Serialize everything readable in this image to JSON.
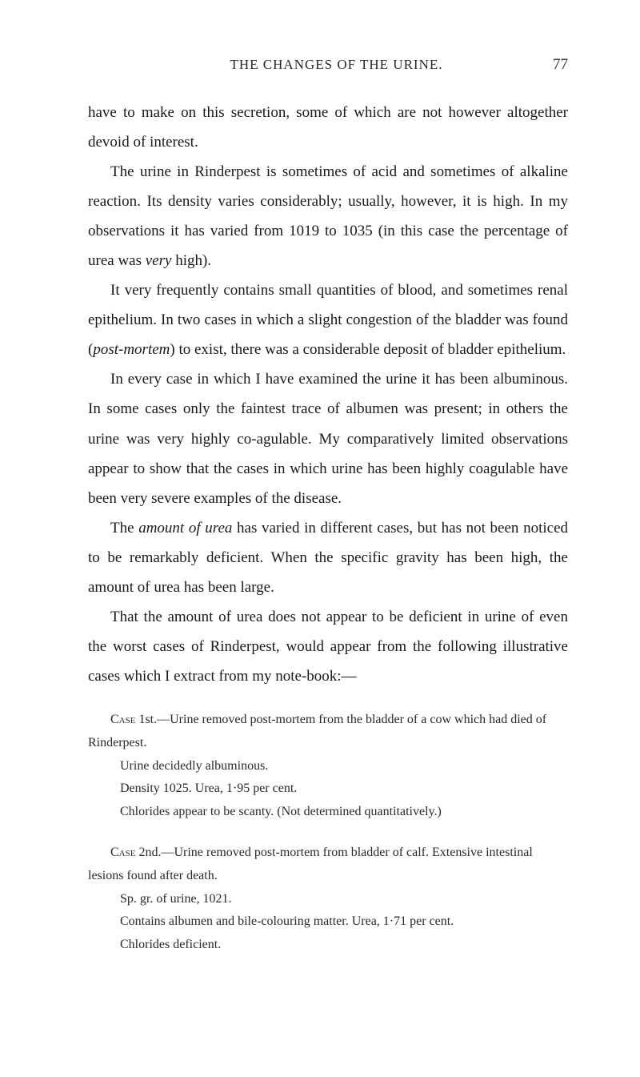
{
  "header": {
    "running_title": "THE CHANGES OF THE URINE.",
    "page_number": "77"
  },
  "paragraphs": {
    "p1": "have to make on this secretion, some of which are not however altogether devoid of interest.",
    "p2": "The urine in Rinderpest is sometimes of acid and sometimes of alkaline reaction. Its density varies considerably; usually, however, it is high. In my observations it has varied from 1019 to 1035 (in this case the percentage of urea was very high).",
    "p3": "It very frequently contains small quantities of blood, and sometimes renal epithelium. In two cases in which a slight congestion of the bladder was found (post-mortem) to exist, there was a considerable deposit of bladder epithelium.",
    "p4": "In every case in which I have examined the urine it has been albuminous. In some cases only the faintest trace of albumen was present; in others the urine was very highly co-agulable. My comparatively limited observations appear to show that the cases in which urine has been highly coagulable have been very severe examples of the disease.",
    "p5": "The amount of urea has varied in different cases, but has not been noticed to be remarkably deficient. When the specific gravity has been high, the amount of urea has been large.",
    "p6": "That the amount of urea does not appear to be deficient in urine of even the worst cases of Rinderpest, would appear from the following illustrative cases which I extract from my note-book:—"
  },
  "cases": {
    "case1": {
      "header": "Case 1st.—Urine removed post-mortem from the bladder of a cow which had died of Rinderpest.",
      "line1": "Urine decidedly albuminous.",
      "line2": "Density 1025.  Urea, 1·95 per cent.",
      "line3": "Chlorides appear to be scanty.  (Not determined quantitatively.)"
    },
    "case2": {
      "header": "Case 2nd.—Urine removed post-mortem from bladder of calf. Extensive intestinal lesions found after death.",
      "line1": "Sp. gr. of urine, 1021.",
      "line2": "Contains albumen and bile-colouring matter.  Urea, 1·71 per cent.",
      "line3": "Chlorides deficient."
    }
  }
}
